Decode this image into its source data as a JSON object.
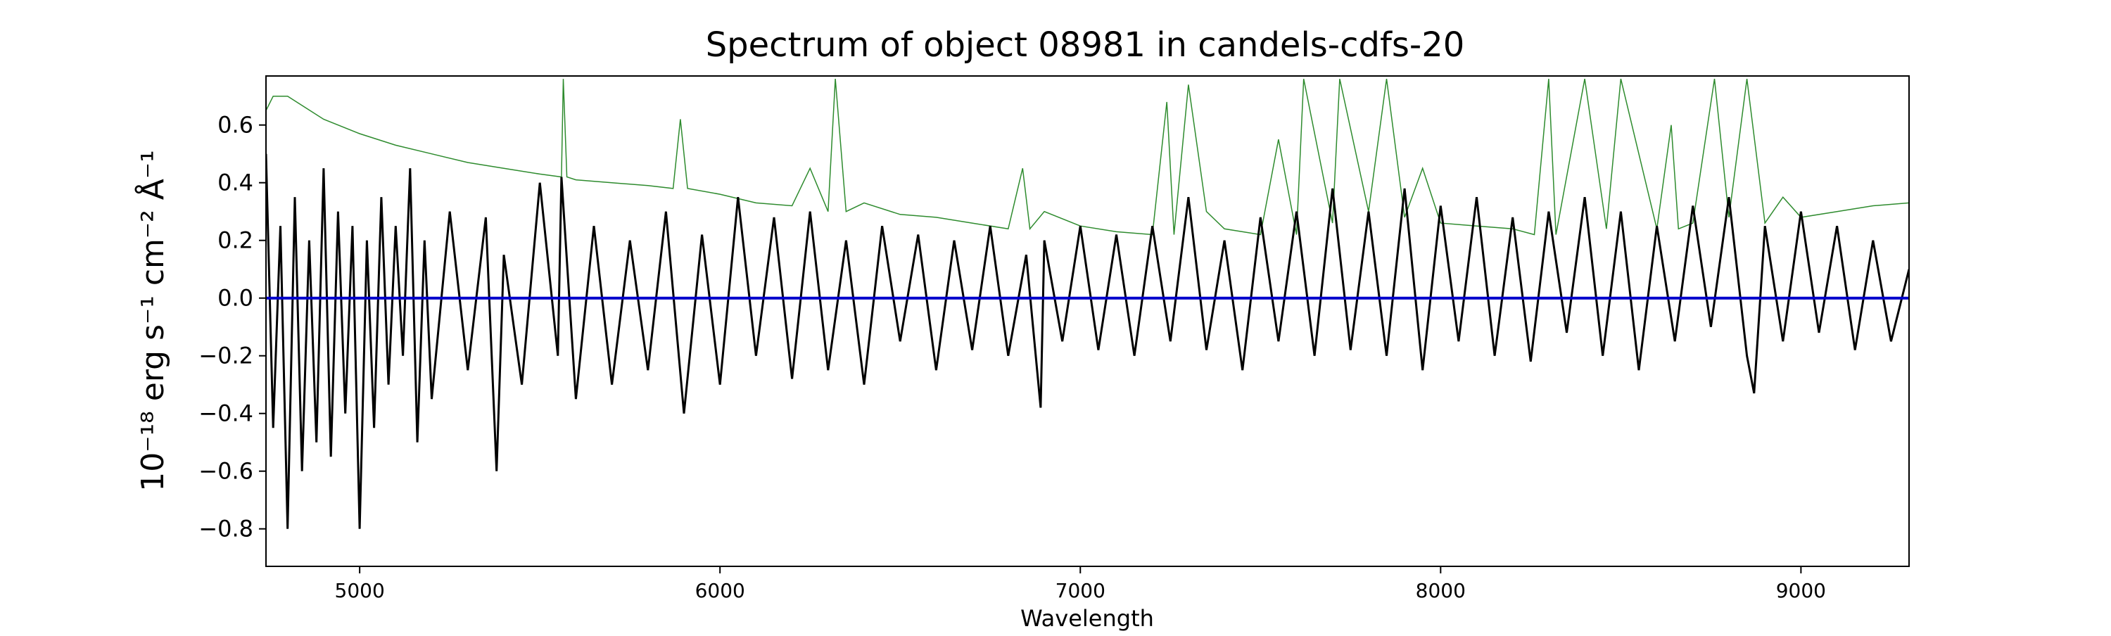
{
  "chart_data": {
    "type": "line",
    "title": "Spectrum of object 08981 in candels-cdfs-20",
    "xlabel": "Wavelength",
    "ylabel": "10⁻¹⁸ erg s⁻¹ cm⁻² Å⁻¹",
    "xlim": [
      4740,
      9300
    ],
    "ylim": [
      -0.93,
      0.77
    ],
    "xticks": [
      5000,
      6000,
      7000,
      8000,
      9000
    ],
    "yticks": [
      -0.8,
      -0.6,
      -0.4,
      -0.2,
      0.0,
      0.2,
      0.4,
      0.6
    ],
    "ytick_labels": [
      "−0.8",
      "−0.6",
      "−0.4",
      "−0.2",
      "0.0",
      "0.2",
      "0.4",
      "0.6"
    ],
    "grid": false,
    "legend": "none",
    "colors": {
      "flux": "#000000",
      "error": "#2e8b2e",
      "zero": "#0000cc"
    },
    "series": [
      {
        "key": "flux",
        "x": [
          4740,
          4760,
          4780,
          4800,
          4820,
          4840,
          4860,
          4880,
          4900,
          4920,
          4940,
          4960,
          4980,
          5000,
          5020,
          5040,
          5060,
          5080,
          5100,
          5120,
          5140,
          5160,
          5180,
          5200,
          5250,
          5300,
          5350,
          5380,
          5400,
          5450,
          5500,
          5550,
          5560,
          5600,
          5650,
          5700,
          5750,
          5800,
          5850,
          5900,
          5950,
          6000,
          6050,
          6100,
          6150,
          6200,
          6250,
          6300,
          6350,
          6400,
          6450,
          6500,
          6550,
          6600,
          6650,
          6700,
          6750,
          6800,
          6850,
          6890,
          6900,
          6950,
          7000,
          7050,
          7100,
          7150,
          7200,
          7250,
          7300,
          7350,
          7400,
          7450,
          7500,
          7550,
          7600,
          7650,
          7700,
          7750,
          7800,
          7850,
          7900,
          7950,
          8000,
          8050,
          8100,
          8150,
          8200,
          8250,
          8300,
          8350,
          8400,
          8450,
          8500,
          8550,
          8600,
          8650,
          8700,
          8750,
          8800,
          8850,
          8870,
          8900,
          8950,
          9000,
          9050,
          9100,
          9150,
          9200,
          9250,
          9300
        ],
        "y": [
          0.5,
          -0.45,
          0.25,
          -0.8,
          0.35,
          -0.6,
          0.2,
          -0.5,
          0.45,
          -0.55,
          0.3,
          -0.4,
          0.25,
          -0.8,
          0.2,
          -0.45,
          0.35,
          -0.3,
          0.25,
          -0.2,
          0.45,
          -0.5,
          0.2,
          -0.35,
          0.3,
          -0.25,
          0.28,
          -0.6,
          0.15,
          -0.3,
          0.4,
          -0.2,
          0.42,
          -0.35,
          0.25,
          -0.3,
          0.2,
          -0.25,
          0.3,
          -0.4,
          0.22,
          -0.3,
          0.35,
          -0.2,
          0.28,
          -0.28,
          0.3,
          -0.25,
          0.2,
          -0.3,
          0.25,
          -0.15,
          0.22,
          -0.25,
          0.2,
          -0.18,
          0.25,
          -0.2,
          0.15,
          -0.38,
          0.2,
          -0.15,
          0.25,
          -0.18,
          0.22,
          -0.2,
          0.25,
          -0.15,
          0.35,
          -0.18,
          0.2,
          -0.25,
          0.28,
          -0.15,
          0.3,
          -0.2,
          0.38,
          -0.18,
          0.3,
          -0.2,
          0.38,
          -0.25,
          0.32,
          -0.15,
          0.35,
          -0.2,
          0.28,
          -0.22,
          0.3,
          -0.12,
          0.35,
          -0.2,
          0.3,
          -0.25,
          0.25,
          -0.15,
          0.32,
          -0.1,
          0.35,
          -0.2,
          -0.33,
          0.25,
          -0.15,
          0.3,
          -0.12,
          0.25,
          -0.18,
          0.2,
          -0.15,
          0.1
        ]
      },
      {
        "key": "error",
        "x": [
          4740,
          4760,
          4800,
          4850,
          4900,
          5000,
          5100,
          5200,
          5300,
          5400,
          5500,
          5560,
          5565,
          5575,
          5600,
          5700,
          5800,
          5870,
          5890,
          5910,
          6000,
          6100,
          6200,
          6250,
          6300,
          6320,
          6350,
          6400,
          6500,
          6600,
          6700,
          6800,
          6840,
          6860,
          6900,
          7000,
          7100,
          7200,
          7240,
          7260,
          7300,
          7350,
          7400,
          7500,
          7550,
          7600,
          7620,
          7700,
          7720,
          7800,
          7850,
          7900,
          7950,
          8000,
          8100,
          8200,
          8260,
          8300,
          8320,
          8400,
          8460,
          8500,
          8600,
          8640,
          8660,
          8700,
          8760,
          8800,
          8850,
          8900,
          8950,
          9000,
          9100,
          9200,
          9300
        ],
        "y": [
          0.65,
          0.7,
          0.7,
          0.66,
          0.62,
          0.57,
          0.53,
          0.5,
          0.47,
          0.45,
          0.43,
          0.42,
          0.76,
          0.42,
          0.41,
          0.4,
          0.39,
          0.38,
          0.62,
          0.38,
          0.36,
          0.33,
          0.32,
          0.45,
          0.3,
          0.76,
          0.3,
          0.33,
          0.29,
          0.28,
          0.26,
          0.24,
          0.45,
          0.24,
          0.3,
          0.25,
          0.23,
          0.22,
          0.68,
          0.22,
          0.74,
          0.3,
          0.24,
          0.22,
          0.55,
          0.22,
          0.76,
          0.26,
          0.76,
          0.3,
          0.76,
          0.28,
          0.45,
          0.26,
          0.25,
          0.24,
          0.22,
          0.76,
          0.22,
          0.76,
          0.24,
          0.76,
          0.24,
          0.6,
          0.24,
          0.26,
          0.76,
          0.28,
          0.76,
          0.26,
          0.35,
          0.28,
          0.3,
          0.32,
          0.33
        ]
      },
      {
        "key": "zero",
        "x": [
          4740,
          9300
        ],
        "y": [
          0.0,
          0.0
        ]
      }
    ]
  }
}
